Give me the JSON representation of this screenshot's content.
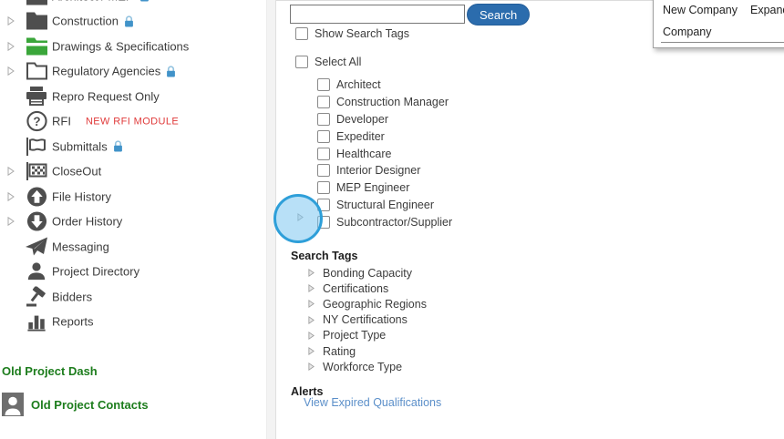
{
  "sidebar": {
    "items": [
      {
        "label": "Architect / MEP",
        "icon": "folder-dark-icon",
        "lock": true,
        "expander": false,
        "extra": ""
      },
      {
        "label": "Construction",
        "icon": "folder-dark-icon",
        "lock": true,
        "expander": true,
        "extra": ""
      },
      {
        "label": "Drawings & Specifications",
        "icon": "folder-green-icon",
        "lock": false,
        "expander": true,
        "extra": ""
      },
      {
        "label": "Regulatory Agencies",
        "icon": "folder-outline-icon",
        "lock": true,
        "expander": true,
        "extra": ""
      },
      {
        "label": "Repro Request Only",
        "icon": "printer-icon",
        "lock": false,
        "expander": false,
        "extra": ""
      },
      {
        "label": "RFI",
        "icon": "question-circle-icon",
        "lock": false,
        "expander": false,
        "extra": "NEW RFI MODULE"
      },
      {
        "label": "Submittals",
        "icon": "flag-icon",
        "lock": true,
        "expander": false,
        "extra": ""
      },
      {
        "label": "CloseOut",
        "icon": "checkered-flag-icon",
        "lock": false,
        "expander": true,
        "extra": ""
      },
      {
        "label": "File History",
        "icon": "circle-up-arrow-icon",
        "lock": false,
        "expander": true,
        "extra": ""
      },
      {
        "label": "Order History",
        "icon": "circle-down-arrow-icon",
        "lock": false,
        "expander": true,
        "extra": ""
      },
      {
        "label": "Messaging",
        "icon": "paper-plane-icon",
        "lock": false,
        "expander": false,
        "extra": ""
      },
      {
        "label": "Project Directory",
        "icon": "person-icon",
        "lock": false,
        "expander": false,
        "extra": ""
      },
      {
        "label": "Bidders",
        "icon": "gavel-icon",
        "lock": false,
        "expander": false,
        "extra": ""
      },
      {
        "label": "Reports",
        "icon": "bar-chart-icon",
        "lock": false,
        "expander": false,
        "extra": ""
      }
    ],
    "footer_links": [
      {
        "label": "Old Project Dash",
        "icon": ""
      },
      {
        "label": "Old Project Contacts",
        "icon": "person-square-icon"
      }
    ]
  },
  "search": {
    "value": "",
    "button_label": "Search",
    "show_search_tags_label": "Show Search Tags"
  },
  "filters": {
    "select_all_label": "Select All",
    "roles": [
      "Architect",
      "Construction Manager",
      "Developer",
      "Expediter",
      "Healthcare",
      "Interior Designer",
      "MEP Engineer",
      "Structural Engineer",
      "Subcontractor/Supplier"
    ]
  },
  "search_tags": {
    "title": "Search Tags",
    "items": [
      "Bonding Capacity",
      "Certifications",
      "Geographic Regions",
      "NY Certifications",
      "Project Type",
      "Rating",
      "Workforce Type"
    ]
  },
  "alerts": {
    "title": "Alerts",
    "link_label": "View Expired Qualifications"
  },
  "companies_panel": {
    "toolbar": [
      "New Company",
      "Expand All"
    ],
    "column_header": "Company"
  },
  "colors": {
    "accent_blue_button": "#2b6cad",
    "link_blue": "#5b8fc9",
    "green_folder": "#3aa63a",
    "lock_blue": "#4193c9",
    "alert_red": "#e03a3a",
    "legacy_green": "#1d7d1d",
    "highlight_circle": "#2e9fd9"
  }
}
